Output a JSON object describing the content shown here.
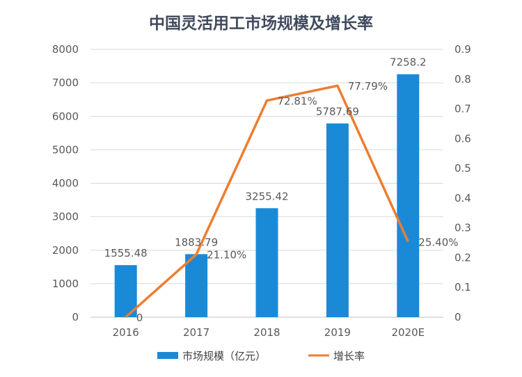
{
  "chart_data": {
    "type": "bar",
    "title": "中国灵活用工市场规模及增长率",
    "categories": [
      "2016",
      "2017",
      "2018",
      "2019",
      "2020E"
    ],
    "series": [
      {
        "name": "市场规模（亿元）",
        "type": "bar",
        "axis": "left",
        "color": "#1b8ad6",
        "values": [
          1555.48,
          1883.79,
          3255.42,
          5787.69,
          7258.2
        ],
        "labels": [
          "1555.48",
          "1883.79",
          "3255.42",
          "5787.69",
          "7258.2"
        ]
      },
      {
        "name": "增长率",
        "type": "line",
        "axis": "right",
        "color": "#ed7d31",
        "values": [
          0,
          0.211,
          0.7281,
          0.7779,
          0.254
        ],
        "labels": [
          "0",
          "21.10%",
          "72.81%",
          "77.79%",
          "25.40%"
        ]
      }
    ],
    "y_left": {
      "min": 0,
      "max": 8000,
      "step": 1000,
      "ticks": [
        "0",
        "1000",
        "2000",
        "3000",
        "4000",
        "5000",
        "6000",
        "7000",
        "8000"
      ]
    },
    "y_right": {
      "min": 0,
      "max": 0.9,
      "step": 0.1,
      "ticks": [
        "0",
        "0.1",
        "0.2",
        "0.3",
        "0.4",
        "0.5",
        "0.6",
        "0.7",
        "0.8",
        "0.9"
      ]
    },
    "grid": true,
    "legend_position": "bottom"
  }
}
